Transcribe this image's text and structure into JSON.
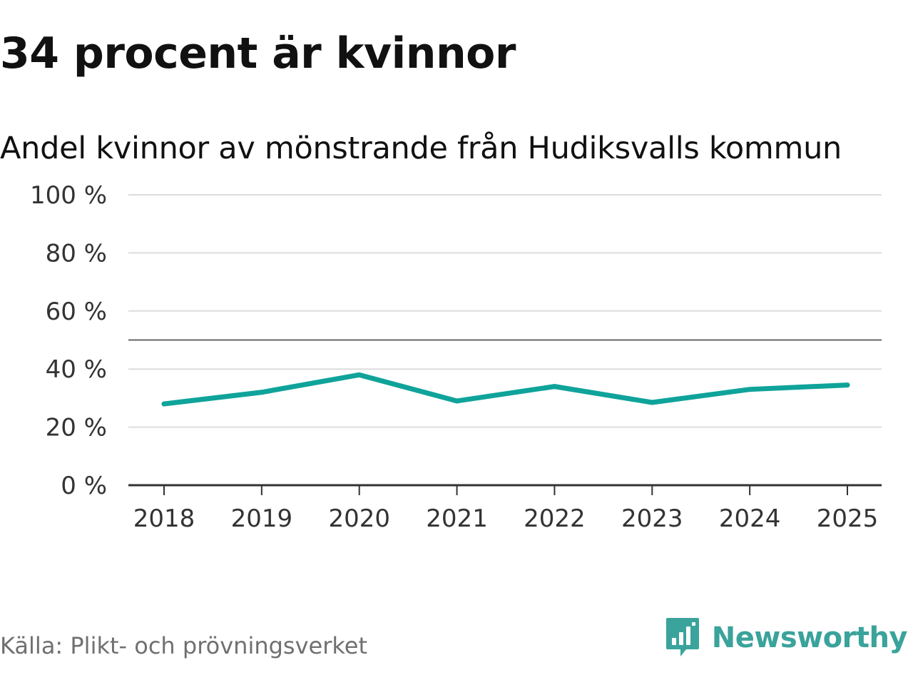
{
  "title": "34 procent är kvinnor",
  "subtitle": "Andel kvinnor av mönstrande från Hudiksvalls kommun",
  "source": "Källa: Plikt- och prövningsverket",
  "brand": {
    "name": "Newsworthy",
    "icon": "newsworthy-logo-icon",
    "color": "#3aa39b"
  },
  "chart_data": {
    "type": "line",
    "categories": [
      "2018",
      "2019",
      "2020",
      "2021",
      "2022",
      "2023",
      "2024",
      "2025"
    ],
    "series": [
      {
        "values": [
          28,
          32,
          38,
          29,
          34,
          28.5,
          33,
          34.5
        ],
        "color": "#0fa39a"
      }
    ],
    "reference_line": 50,
    "ylim": [
      0,
      100
    ],
    "yticks": [
      0,
      20,
      40,
      60,
      80,
      100
    ],
    "ytick_labels": [
      "0 %",
      "20 %",
      "40 %",
      "60 %",
      "80 %",
      "100 %"
    ],
    "grid": true,
    "legend": "none"
  }
}
